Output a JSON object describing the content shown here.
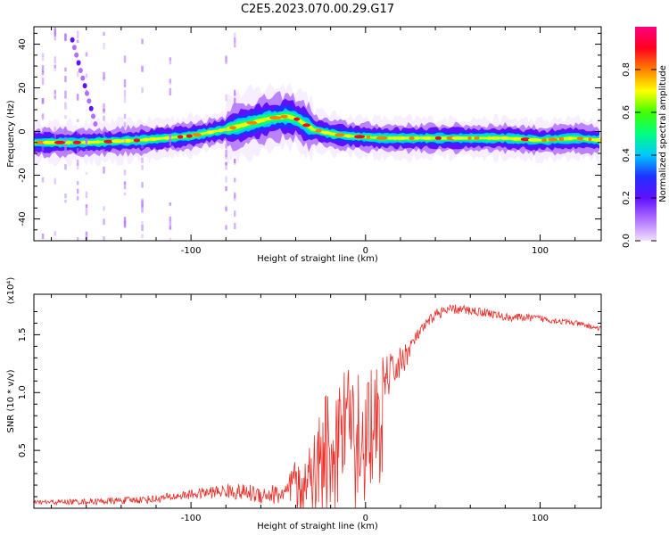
{
  "title": "C2E5.2023.070.00.29.G17",
  "colors": {
    "snr_line": "#e8302a",
    "colorbar_stops": [
      "#f0e0ff",
      "#b070ff",
      "#6010ff",
      "#2030ff",
      "#00c8ff",
      "#00ff80",
      "#40ff00",
      "#ffff00",
      "#ff8000",
      "#ff0020",
      "#ff0080"
    ]
  },
  "chart_data": [
    {
      "type": "heatmap",
      "xlabel": "Height of straight line (km)",
      "ylabel": "Frequency (Hz)",
      "xlim": [
        -190,
        135
      ],
      "ylim": [
        -50,
        48
      ],
      "xticks": [
        -100,
        0,
        100
      ],
      "yticks": [
        -40,
        -20,
        0,
        20,
        40
      ],
      "ridge": {
        "x": [
          -190,
          -160,
          -130,
          -100,
          -80,
          -65,
          -55,
          -45,
          -40,
          -30,
          -20,
          -10,
          0,
          10,
          20,
          40,
          60,
          80,
          100,
          120,
          135
        ],
        "y": [
          -5,
          -5,
          -4,
          -2,
          1,
          4,
          6,
          7,
          6,
          1,
          -1,
          -2,
          -2.5,
          -3,
          -3,
          -3,
          -3,
          -3,
          -4,
          -3,
          -4
        ]
      },
      "colorbar": {
        "label": "Normalized spectral amplitude",
        "range": [
          0,
          1
        ],
        "ticks": [
          0.0,
          0.2,
          0.4,
          0.6,
          0.8
        ]
      }
    },
    {
      "type": "line",
      "xlabel": "Height of straight line (km)",
      "ylabel": "SNR (10 * v/v)",
      "multiplier": "(x10⁴)",
      "xlim": [
        -190,
        135
      ],
      "ylim": [
        0,
        1.85
      ],
      "xticks": [
        -100,
        0,
        100
      ],
      "yticks": [
        0.5,
        1.0,
        1.5
      ],
      "series": [
        {
          "envelope": {
            "x": [
              -190,
              -150,
              -120,
              -100,
              -80,
              -60,
              -45,
              -38,
              -30,
              -20,
              -10,
              -3,
              0,
              10,
              20,
              30,
              40,
              50,
              60,
              70,
              80,
              90,
              100,
              110,
              120,
              135
            ],
            "y": [
              0.05,
              0.06,
              0.08,
              0.12,
              0.15,
              0.12,
              0.12,
              0.25,
              0.45,
              0.65,
              0.85,
              1.0,
              1.0,
              1.1,
              1.25,
              1.5,
              1.68,
              1.72,
              1.71,
              1.69,
              1.65,
              1.65,
              1.64,
              1.62,
              1.6,
              1.55
            ]
          },
          "noise": {
            "x": [
              -190,
              -100,
              -45,
              -38,
              -30,
              -20,
              -10,
              -3,
              0,
              10,
              20,
              30,
              135
            ],
            "y": [
              0.02,
              0.04,
              0.1,
              0.35,
              0.55,
              0.65,
              0.6,
              0.55,
              0.3,
              0.2,
              0.15,
              0.05,
              0.02
            ]
          }
        }
      ]
    }
  ]
}
